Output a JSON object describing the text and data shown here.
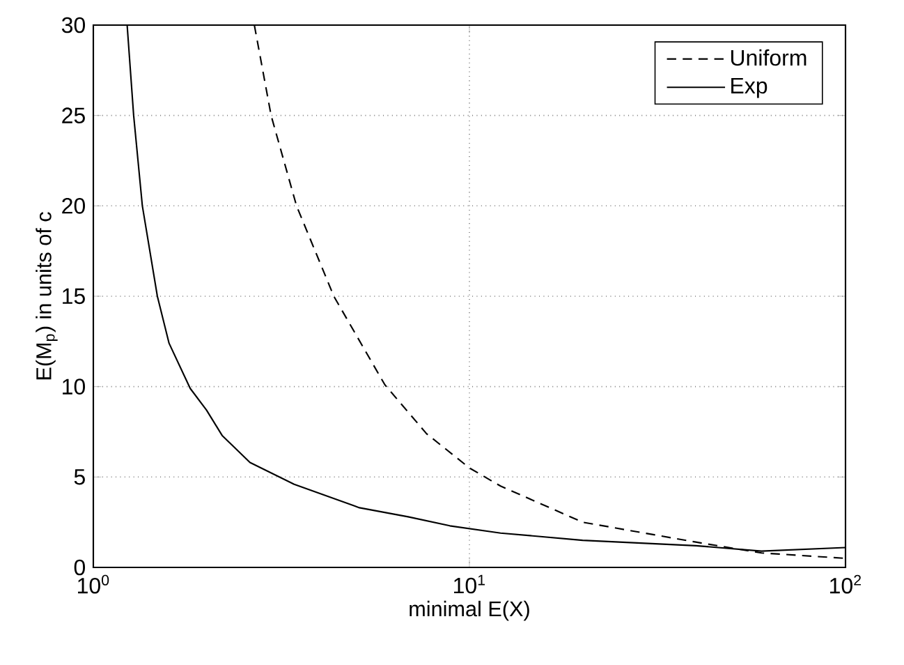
{
  "chart_data": {
    "type": "line",
    "xlabel": "minimal E(X)",
    "ylabel": "E(M$_{p}$) in units of c",
    "log": "x",
    "grid": true,
    "legend": "top right",
    "marker": "none",
    "xlim": [
      1,
      100
    ],
    "ylim": [
      0,
      30
    ],
    "xticks": [
      {
        "value": 1,
        "label": "10$^{0}$"
      },
      {
        "value": 10,
        "label": "10$^{1}$"
      },
      {
        "value": 100,
        "label": "10$^{2}$"
      }
    ],
    "yticks": [
      0,
      5,
      10,
      15,
      20,
      25,
      30
    ],
    "series": [
      {
        "name": "Uniform",
        "color": "#000000",
        "line_style": "dashed",
        "x": [
          2.68,
          2.97,
          3.47,
          4.36,
          5.96,
          7.69,
          10,
          12.1,
          20,
          40,
          59.8,
          100
        ],
        "values": [
          30,
          25,
          20,
          15,
          10.1,
          7.4,
          5.5,
          4.5,
          2.5,
          1.4,
          0.8,
          0.5
        ]
      },
      {
        "name": "Exp",
        "color": "#000000",
        "line_style": "solid",
        "x": [
          1.23,
          1.28,
          1.35,
          1.48,
          1.59,
          1.81,
          2.0,
          2.2,
          2.61,
          3.42,
          5.1,
          6.87,
          8.87,
          12.1,
          20,
          40,
          59.8,
          100
        ],
        "values": [
          30,
          25,
          20,
          15,
          12.4,
          9.9,
          8.7,
          7.3,
          5.8,
          4.6,
          3.3,
          2.8,
          2.3,
          1.9,
          1.5,
          1.2,
          0.9,
          1.1
        ]
      }
    ]
  }
}
